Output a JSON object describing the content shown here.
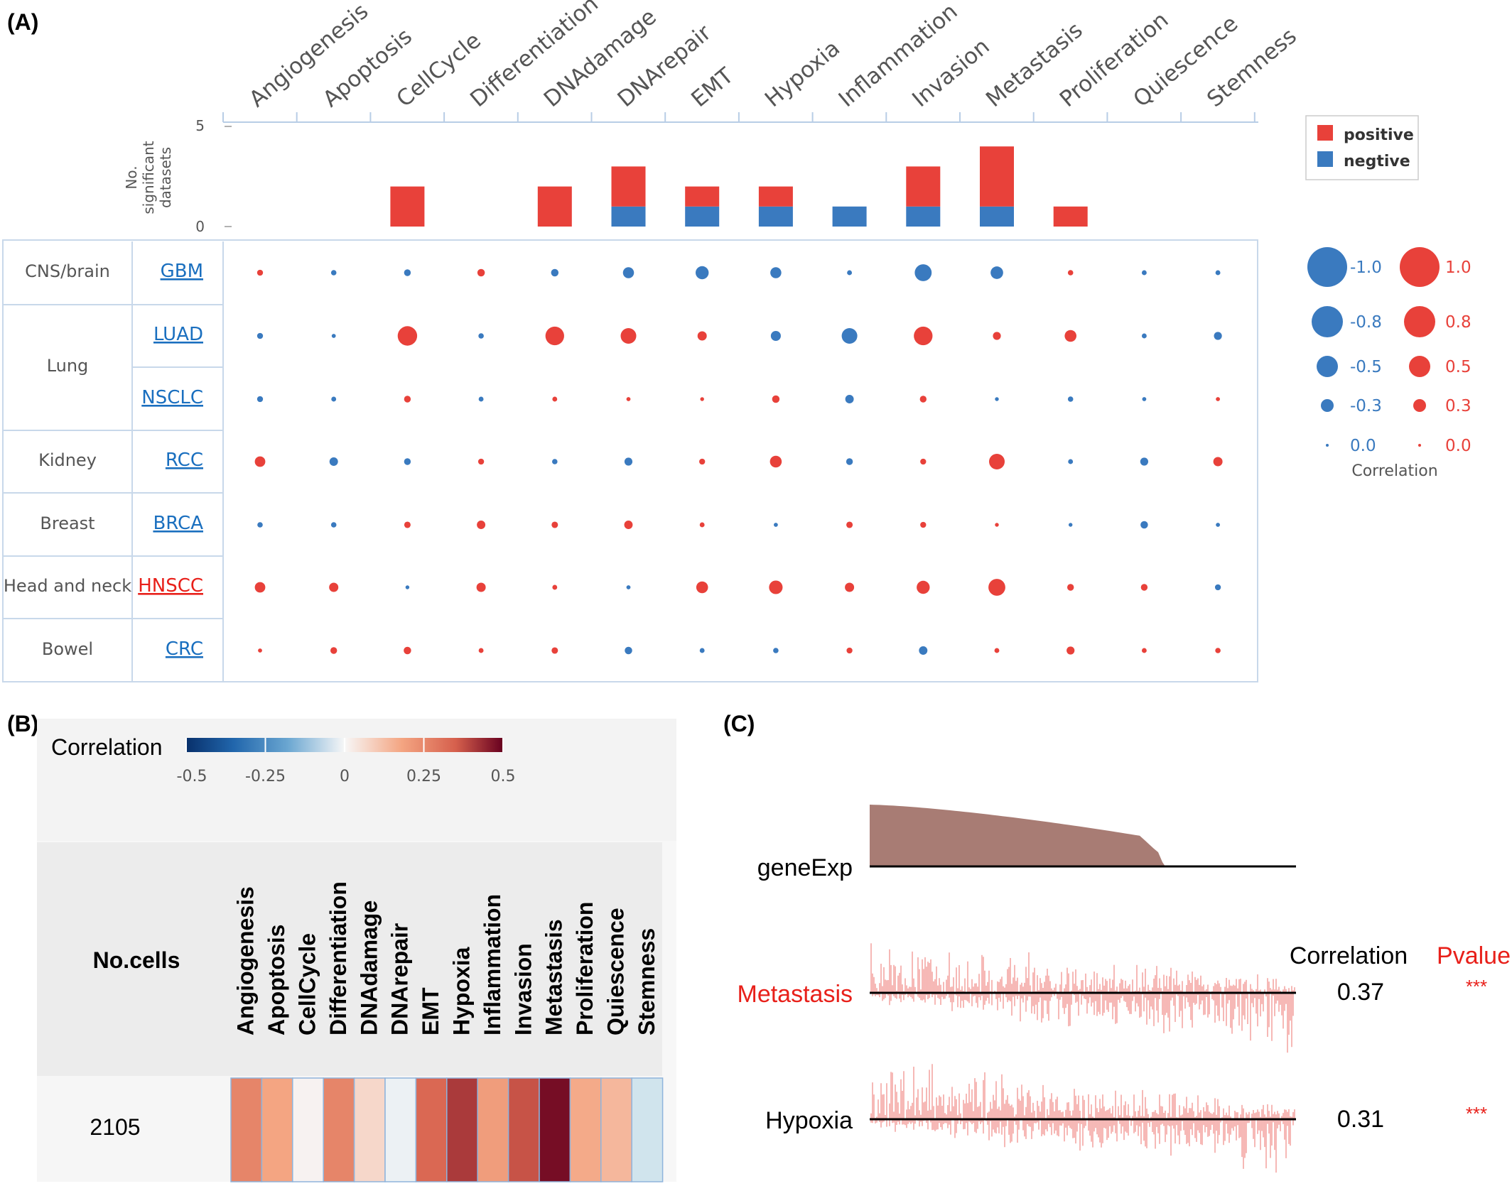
{
  "panels": {
    "a_label": "(A)",
    "b_label": "(B)",
    "c_label": "(C)"
  },
  "colors": {
    "positive": "#e8413a",
    "negative": "#3a7abf",
    "link_blue": "#1a6fbf",
    "link_red": "#e8201a",
    "bar_brown": "#a87c74",
    "wave_red": "#ef8a86"
  },
  "functional_states": [
    "Angiogenesis",
    "Apoptosis",
    "CellCycle",
    "Differentiation",
    "DNAdamage",
    "DNArepair",
    "EMT",
    "Hypoxia",
    "Inflammation",
    "Invasion",
    "Metastasis",
    "Proliferation",
    "Quiescence",
    "Stemness"
  ],
  "panel_a": {
    "bar_axis_label": [
      "No.",
      "significant",
      "datasets"
    ],
    "bar_axis_ticks": [
      "5",
      "0"
    ],
    "legend": [
      {
        "label": "positive",
        "color": "#e8413a"
      },
      {
        "label": "negtive",
        "color": "#3a7abf"
      }
    ],
    "tissues": [
      {
        "tissue": "CNS/brain",
        "datasets": [
          "GBM"
        ]
      },
      {
        "tissue": "Lung",
        "datasets": [
          "LUAD",
          "NSCLC"
        ]
      },
      {
        "tissue": "Kidney",
        "datasets": [
          "RCC"
        ]
      },
      {
        "tissue": "Breast",
        "datasets": [
          "BRCA"
        ]
      },
      {
        "tissue": "Head and neck",
        "datasets": [
          "HNSCC"
        ]
      },
      {
        "tissue": "Bowel",
        "datasets": [
          "CRC"
        ]
      }
    ],
    "highlighted_dataset": "HNSCC",
    "size_legend": {
      "negative": [
        "-1.0",
        "-0.8",
        "-0.5",
        "-0.3",
        "0.0"
      ],
      "positive": [
        "1.0",
        "0.8",
        "0.5",
        "0.3",
        "0.0"
      ],
      "title": "Correlation"
    }
  },
  "chart_data": [
    {
      "type": "bar",
      "stacked": true,
      "categories": [
        "Angiogenesis",
        "Apoptosis",
        "CellCycle",
        "Differentiation",
        "DNAdamage",
        "DNArepair",
        "EMT",
        "Hypoxia",
        "Inflammation",
        "Invasion",
        "Metastasis",
        "Proliferation",
        "Quiescence",
        "Stemness"
      ],
      "series": [
        {
          "name": "negtive",
          "values": [
            0,
            0,
            0,
            0,
            0,
            1,
            1,
            1,
            1,
            1,
            1,
            0,
            0,
            0
          ]
        },
        {
          "name": "positive",
          "values": [
            0,
            0,
            2,
            0,
            2,
            2,
            1,
            1,
            0,
            2,
            3,
            1,
            0,
            0
          ]
        }
      ],
      "ylabel": "No. significant datasets",
      "ylim": [
        0,
        5
      ]
    },
    {
      "type": "scatter",
      "rows": [
        "GBM",
        "LUAD",
        "NSCLC",
        "RCC",
        "BRCA",
        "HNSCC",
        "CRC"
      ],
      "columns": [
        "Angiogenesis",
        "Apoptosis",
        "CellCycle",
        "Differentiation",
        "DNAdamage",
        "DNArepair",
        "EMT",
        "Hypoxia",
        "Inflammation",
        "Invasion",
        "Metastasis",
        "Proliferation",
        "Quiescence",
        "Stemness"
      ],
      "values": [
        [
          0.12,
          -0.1,
          -0.15,
          0.18,
          -0.18,
          -0.32,
          -0.4,
          -0.32,
          -0.08,
          -0.55,
          -0.38,
          0.1,
          -0.08,
          -0.08
        ],
        [
          -0.12,
          -0.05,
          0.65,
          -0.1,
          0.62,
          0.5,
          0.25,
          -0.28,
          -0.5,
          0.62,
          0.2,
          0.35,
          -0.08,
          -0.2
        ],
        [
          -0.12,
          -0.08,
          0.15,
          -0.08,
          0.08,
          0.05,
          0.04,
          0.18,
          -0.22,
          0.15,
          -0.04,
          -0.1,
          -0.05,
          0.05
        ],
        [
          0.3,
          -0.22,
          -0.15,
          0.12,
          -0.1,
          -0.2,
          0.12,
          0.35,
          -0.15,
          0.12,
          0.5,
          -0.08,
          -0.2,
          0.25
        ],
        [
          -0.1,
          -0.1,
          0.14,
          0.22,
          0.14,
          0.22,
          0.08,
          -0.05,
          0.14,
          0.12,
          0.04,
          -0.04,
          -0.18,
          -0.05
        ],
        [
          0.3,
          0.25,
          -0.04,
          0.25,
          0.08,
          -0.05,
          0.35,
          0.42,
          0.25,
          0.4,
          0.55,
          0.15,
          0.15,
          -0.12
        ],
        [
          0.05,
          0.15,
          0.18,
          0.08,
          0.14,
          -0.18,
          -0.08,
          -0.1,
          0.12,
          -0.22,
          0.08,
          0.2,
          0.08,
          0.1
        ]
      ],
      "size_scale": "abs(correlation)",
      "color_rule": {
        "positive": "#e8413a",
        "negative": "#3a7abf"
      }
    },
    {
      "type": "heatmap",
      "title": "Correlation",
      "rows": [
        "2105"
      ],
      "row_header": "No.cells",
      "columns": [
        "Angiogenesis",
        "Apoptosis",
        "CellCycle",
        "Differentiation",
        "DNAdamage",
        "DNArepair",
        "EMT",
        "Hypoxia",
        "Inflammation",
        "Invasion",
        "Metastasis",
        "Proliferation",
        "Quiescence",
        "Stemness"
      ],
      "values": [
        [
          0.26,
          0.18,
          0.01,
          0.26,
          0.07,
          -0.02,
          0.33,
          0.41,
          0.2,
          0.37,
          0.48,
          0.17,
          0.14,
          -0.07
        ]
      ],
      "color_scale": {
        "min": -0.5,
        "max": 0.5,
        "ticks": [
          "-0.5",
          "-0.25",
          "0",
          "0.25",
          "0.5"
        ],
        "low": "#08306b",
        "mid": "#f7f7f7",
        "high": "#67001f"
      }
    },
    {
      "type": "line",
      "tracks": [
        {
          "name": "geneExp",
          "kind": "sorted-expression"
        },
        {
          "name": "Metastasis",
          "correlation": "0.37",
          "pvalue": "***",
          "highlight": true
        },
        {
          "name": "Hypoxia",
          "correlation": "0.31",
          "pvalue": "***",
          "highlight": false
        }
      ],
      "header": {
        "correlation": "Correlation",
        "pvalue": "Pvalue"
      }
    }
  ]
}
